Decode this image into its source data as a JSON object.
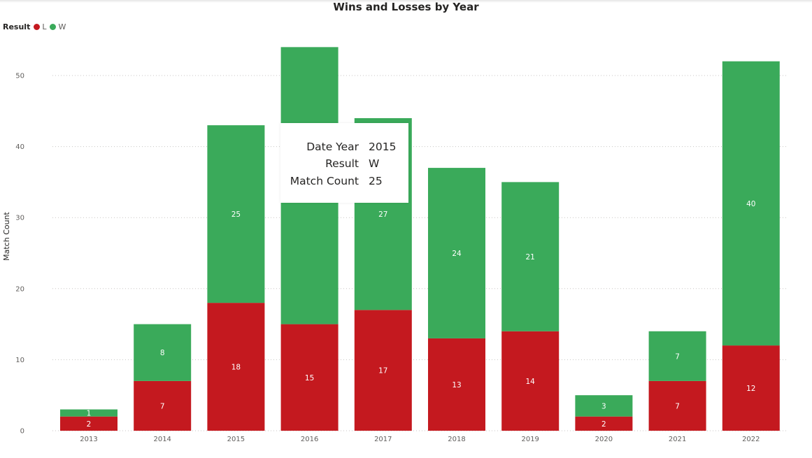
{
  "chart_data": {
    "type": "bar",
    "stacked": true,
    "title": "Wins and Losses by Year",
    "xlabel": "",
    "ylabel": "Match Count",
    "ylim": [
      0,
      55
    ],
    "yticks": [
      0,
      10,
      20,
      30,
      40,
      50
    ],
    "grid": true,
    "legend": {
      "title": "Result",
      "position": "top-left",
      "items": [
        "L",
        "W"
      ]
    },
    "categories": [
      "2013",
      "2014",
      "2015",
      "2016",
      "2017",
      "2018",
      "2019",
      "2020",
      "2021",
      "2022"
    ],
    "series": [
      {
        "name": "L",
        "color": "#c4191f",
        "values": [
          2,
          7,
          18,
          15,
          17,
          13,
          14,
          2,
          7,
          12
        ]
      },
      {
        "name": "W",
        "color": "#3aaa5a",
        "values": [
          1,
          8,
          25,
          39,
          27,
          24,
          21,
          3,
          7,
          40
        ]
      }
    ],
    "data_labels": {
      "L": [
        "2",
        "7",
        "18",
        "15",
        "17",
        "13",
        "14",
        "2",
        "7",
        "12"
      ],
      "W": [
        "1",
        "8",
        "25",
        "",
        "27",
        "24",
        "21",
        "3",
        "7",
        "40"
      ]
    }
  },
  "tooltip": {
    "rows": [
      {
        "key": "Date Year",
        "value": "2015"
      },
      {
        "key": "Result",
        "value": "W"
      },
      {
        "key": "Match Count",
        "value": "25"
      }
    ]
  }
}
